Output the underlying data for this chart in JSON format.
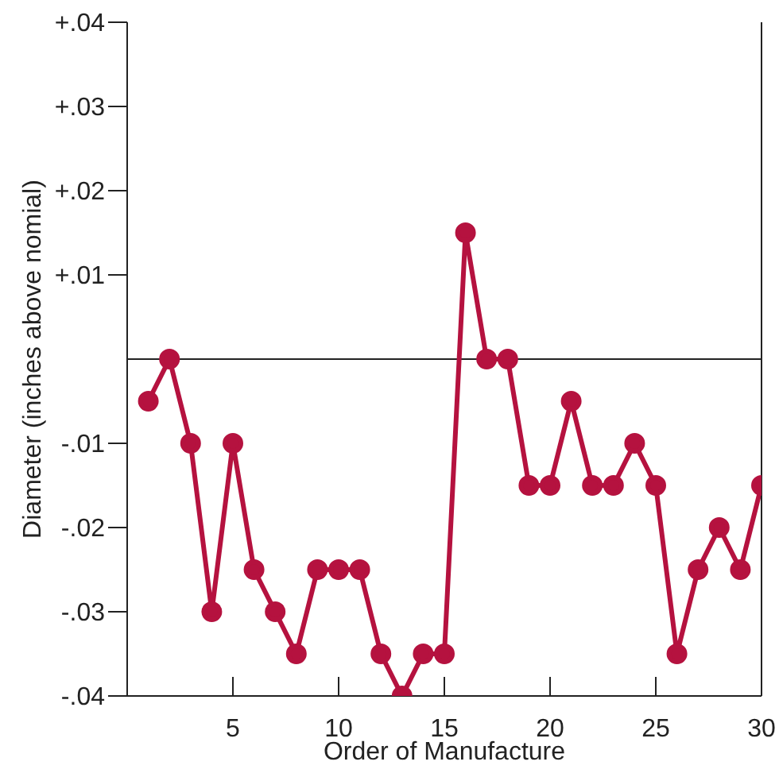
{
  "chart_data": {
    "type": "line",
    "xlabel": "Order of Manufacture",
    "ylabel": "Diameter (inches above nomial)",
    "x": [
      1,
      2,
      3,
      4,
      5,
      6,
      7,
      8,
      9,
      10,
      11,
      12,
      13,
      14,
      15,
      16,
      17,
      18,
      19,
      20,
      21,
      22,
      23,
      24,
      25,
      26,
      27,
      28,
      29,
      30
    ],
    "series": [
      {
        "color": "#b5123f",
        "values": [
          -0.005,
          0,
          -0.01,
          -0.03,
          -0.01,
          -0.025,
          -0.03,
          -0.035,
          -0.025,
          -0.025,
          -0.025,
          -0.035,
          -0.04,
          -0.035,
          -0.035,
          0.015,
          0,
          0,
          -0.015,
          -0.015,
          -0.005,
          -0.015,
          -0.015,
          -0.01,
          -0.015,
          -0.035,
          -0.025,
          -0.02,
          -0.025,
          -0.015
        ]
      }
    ],
    "xlim": [
      0,
      30
    ],
    "xticks": [
      5,
      10,
      15,
      20,
      25,
      30
    ],
    "ylim": [
      -0.04,
      0.04
    ],
    "yticks": [
      {
        "value": 0.04,
        "label": "+.04"
      },
      {
        "value": 0.03,
        "label": "+.03"
      },
      {
        "value": 0.02,
        "label": "+.02"
      },
      {
        "value": 0.01,
        "label": "+.01"
      },
      {
        "value": -0.01,
        "label": "-.01"
      },
      {
        "value": -0.02,
        "label": "-.02"
      },
      {
        "value": -0.03,
        "label": "-.03"
      },
      {
        "value": -0.04,
        "label": "-.04"
      }
    ],
    "ref_lines": [
      {
        "axis": "y",
        "value": 0,
        "color": "#222222"
      }
    ],
    "marker": "circle",
    "line_style": "solid",
    "grid": false,
    "legend": false
  }
}
